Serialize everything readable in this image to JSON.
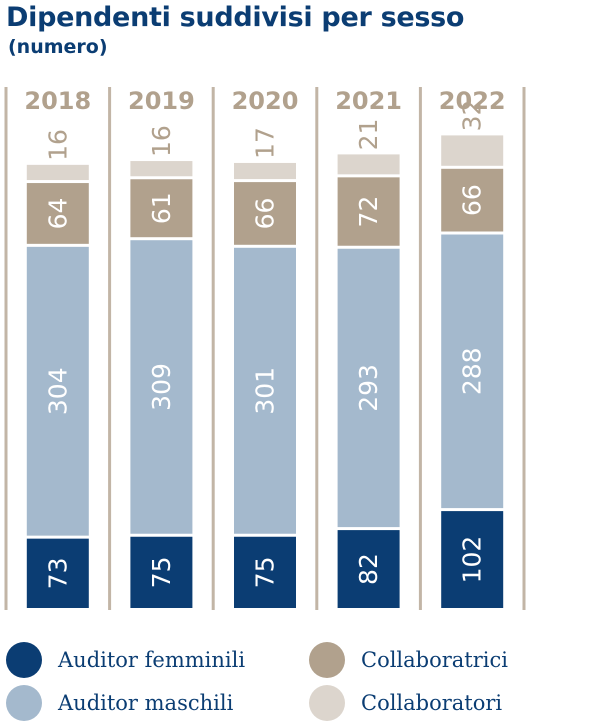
{
  "chart_data": {
    "type": "bar",
    "stacked": true,
    "title": "Dipendenti suddivisi per sesso",
    "subtitle": "(numero)",
    "categories": [
      "2018",
      "2019",
      "2020",
      "2021",
      "2022"
    ],
    "series": [
      {
        "name": "Auditor femminili",
        "color": "#0b3d73",
        "label_color": "#ffffff",
        "values": [
          73,
          75,
          75,
          82,
          102
        ]
      },
      {
        "name": "Auditor maschili",
        "color": "#a4b9cd",
        "label_color": "#ffffff",
        "values": [
          304,
          309,
          301,
          293,
          288
        ]
      },
      {
        "name": "Collaboratrici",
        "color": "#b1a18d",
        "label_color": "#ffffff",
        "values": [
          64,
          61,
          66,
          72,
          66
        ]
      },
      {
        "name": "Collaboratori",
        "color": "#dcd5cd",
        "label_color": "#b1a18d",
        "values": [
          16,
          16,
          17,
          21,
          32
        ]
      }
    ],
    "grid": false,
    "legend_position": "bottom"
  },
  "colors": {
    "title": "#0b3d73",
    "year_label": "#b1a18d",
    "separator": "#c2b5a6"
  }
}
